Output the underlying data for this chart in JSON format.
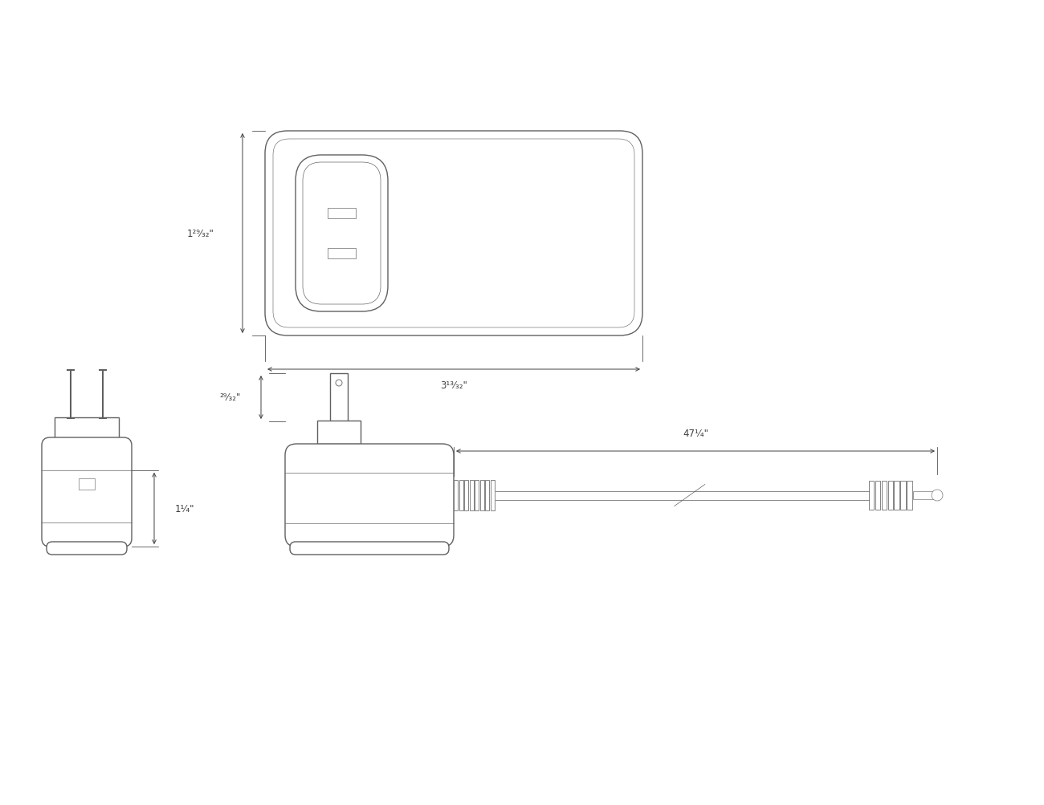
{
  "bg_color": "#ffffff",
  "line_color": "#606060",
  "dim_color": "#404040",
  "line_width": 1.0,
  "thin_line": 0.6,
  "fig_width": 13.0,
  "fig_height": 10.04,
  "dim_labels": {
    "height_top": "1²⁹⁄₃₂\"",
    "width_top": "3¹³⁄₃₂\"",
    "height_plug": "²⁹⁄₃₂\"",
    "height_side": "1¹⁄₄\"",
    "cord_length": "47¹⁄₄\""
  }
}
